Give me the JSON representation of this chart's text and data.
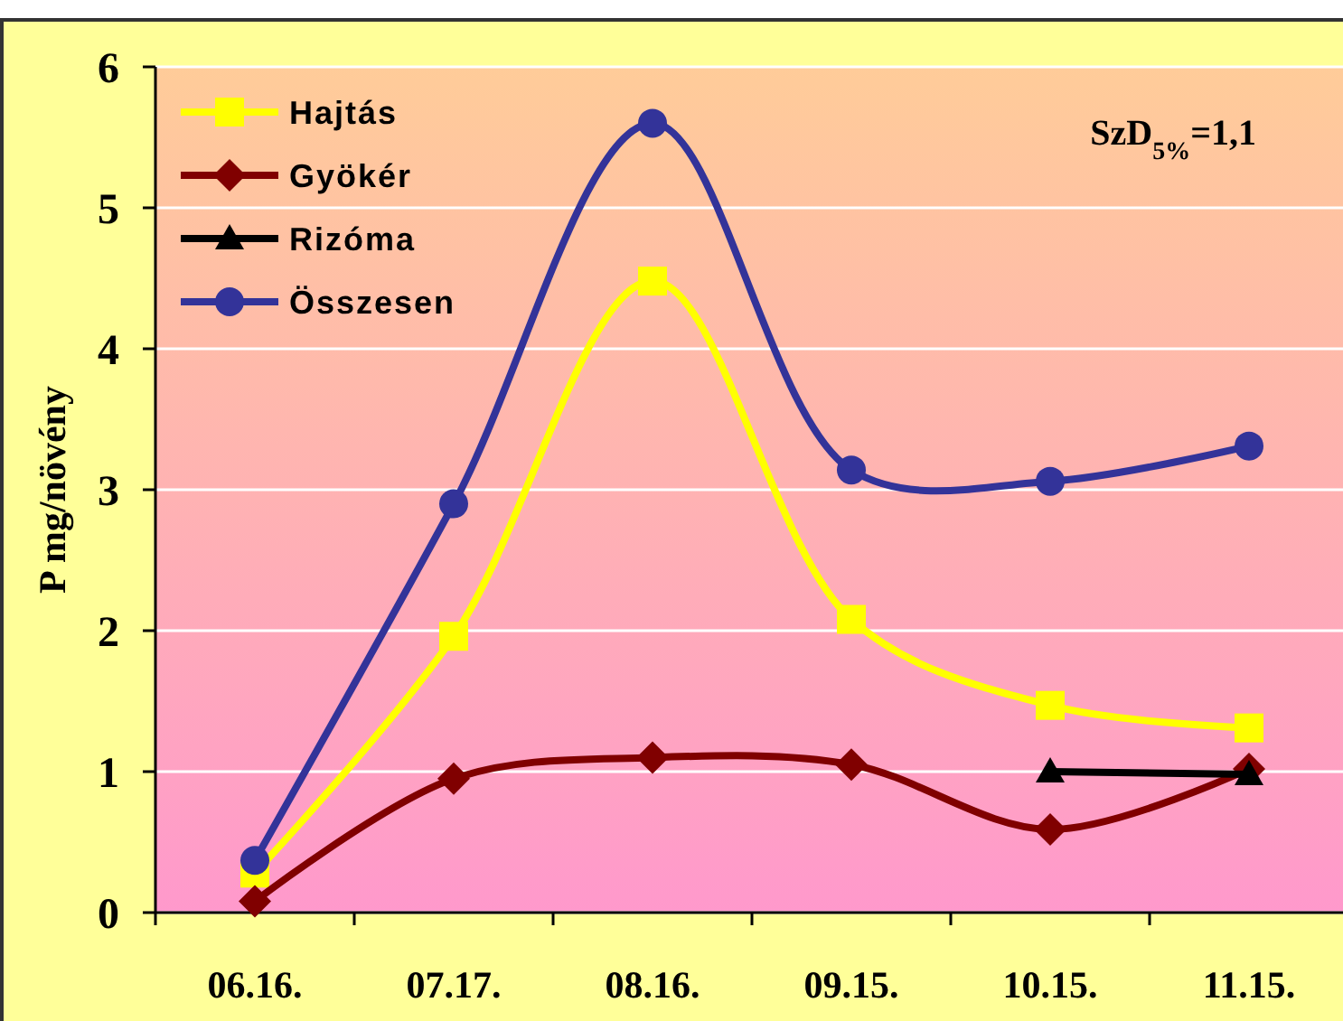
{
  "chart_data": {
    "type": "line",
    "ylabel": "P mg/növény",
    "categories": [
      "06.16.",
      "07.17.",
      "08.16.",
      "09.15.",
      "10.15.",
      "11.15."
    ],
    "series": [
      {
        "name": "Hajtás",
        "color": "#ffff00",
        "marker": "square",
        "values": [
          0.28,
          1.96,
          4.48,
          2.08,
          1.47,
          1.31
        ]
      },
      {
        "name": "Gyökér",
        "color": "#800000",
        "marker": "diamond",
        "values": [
          0.08,
          0.95,
          1.1,
          1.05,
          0.59,
          1.02
        ]
      },
      {
        "name": "Rizóma",
        "color": "#000000",
        "marker": "triangle",
        "values": [
          null,
          null,
          null,
          null,
          1.0,
          0.98
        ]
      },
      {
        "name": "Összesen",
        "color": "#333399",
        "marker": "circle",
        "values": [
          0.37,
          2.9,
          5.6,
          3.14,
          3.06,
          3.31
        ]
      }
    ],
    "ylim": [
      0,
      6
    ],
    "yticks": [
      0,
      1,
      2,
      3,
      4,
      5,
      6
    ],
    "grid": "y",
    "legend": "top left",
    "annotations": [
      "SzD$_{5%}$=1,1"
    ]
  }
}
